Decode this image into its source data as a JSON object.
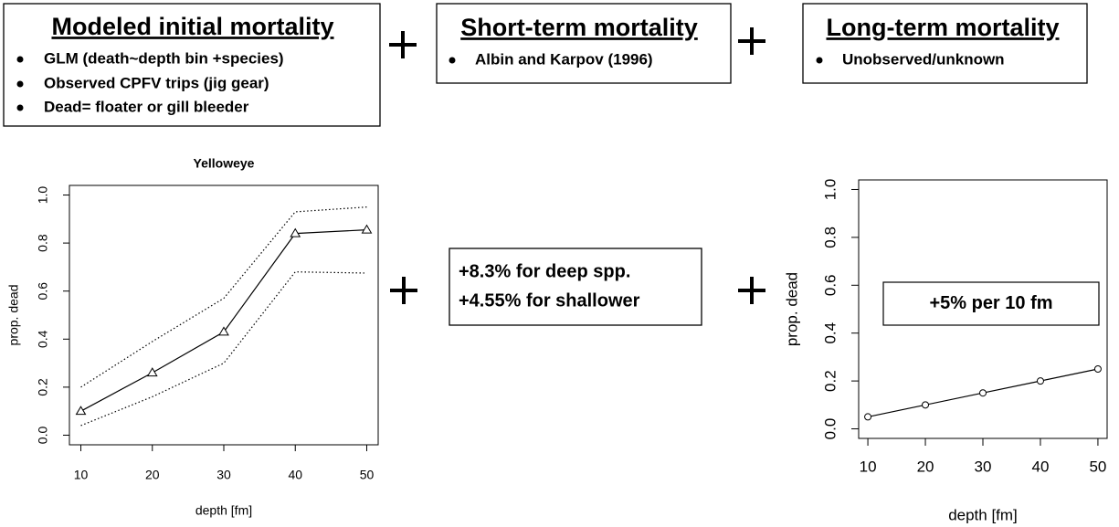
{
  "boxes": [
    {
      "title": "Modeled initial mortality",
      "bullets": [
        "GLM (death~depth bin +species)",
        "Observed CPFV trips (jig gear)",
        "Dead= floater or gill bleeder"
      ]
    },
    {
      "title": "Short-term mortality",
      "bullets": [
        "Albin and Karpov (1996)"
      ]
    },
    {
      "title": "Long-term mortality",
      "bullets": [
        "Unobserved/unknown"
      ]
    }
  ],
  "note": {
    "lines": [
      "+8.3% for deep spp.",
      "+4.55% for shallower"
    ]
  },
  "chart_data": [
    {
      "type": "line",
      "title": "Yelloweye",
      "xlabel": "depth [fm]",
      "ylabel": "prop. dead",
      "x": [
        10,
        20,
        30,
        40,
        50
      ],
      "series": [
        {
          "color": "#000000",
          "marker": "triangle",
          "values": [
            0.1,
            0.26,
            0.43,
            0.84,
            0.855
          ]
        },
        {
          "color": "#000000",
          "linestyle": "dotted",
          "values": [
            0.2,
            0.39,
            0.57,
            0.93,
            0.95
          ]
        },
        {
          "color": "#000000",
          "linestyle": "dotted",
          "values": [
            0.04,
            0.16,
            0.3,
            0.68,
            0.675
          ]
        }
      ],
      "xlim": [
        8.4,
        51.6
      ],
      "xticks": [
        10,
        20,
        30,
        40,
        50
      ],
      "ylim": [
        -0.04,
        1.04
      ],
      "yticks": [
        {
          "value": 0,
          "label": "0.0"
        },
        0.2,
        0.4,
        0.6,
        0.8,
        {
          "value": 1,
          "label": "1.0"
        }
      ]
    },
    {
      "type": "line",
      "xlabel": "depth [fm]",
      "ylabel": "prop. dead",
      "annotation": "+5% per 10 fm",
      "x": [
        10,
        20,
        30,
        40,
        50
      ],
      "series": [
        {
          "color": "#000000",
          "marker": "circle",
          "values": [
            0.05,
            0.1,
            0.15,
            0.2,
            0.25
          ]
        }
      ],
      "xlim": [
        8.4,
        51.6
      ],
      "xticks": [
        10,
        20,
        30,
        40,
        50
      ],
      "ylim": [
        -0.04,
        1.04
      ],
      "yticks": [
        {
          "value": 0,
          "label": "0.0"
        },
        0.2,
        0.4,
        0.6,
        0.8,
        {
          "value": 1,
          "label": "1.0"
        }
      ]
    }
  ]
}
